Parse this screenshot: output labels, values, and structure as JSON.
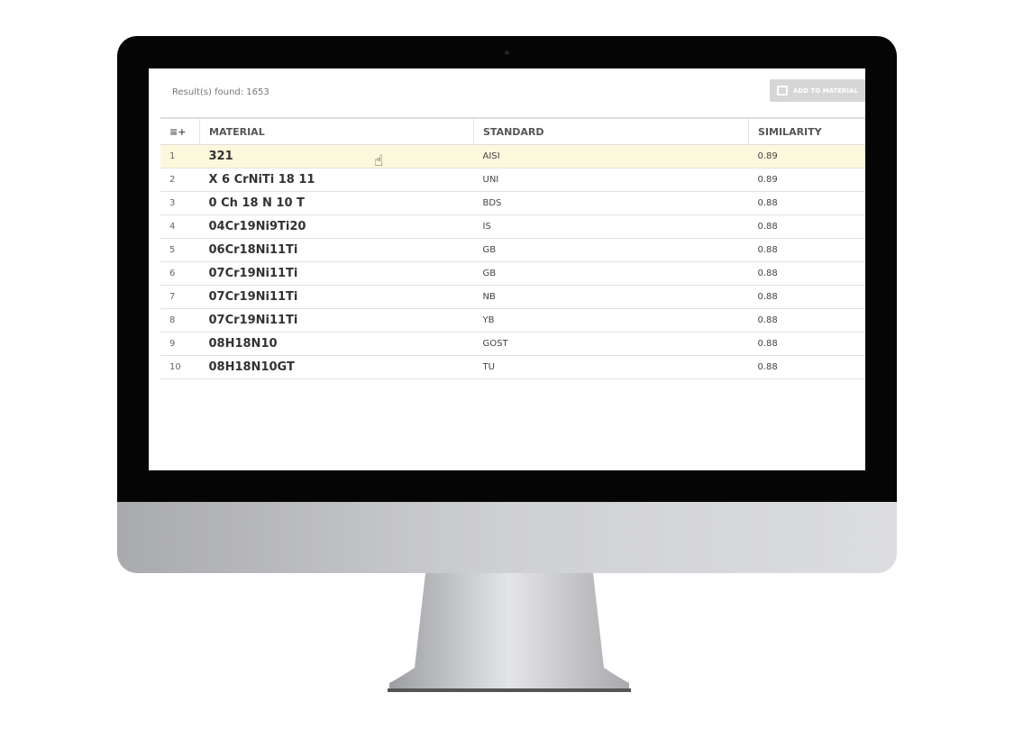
{
  "results_label": "Result(s) found: 1653",
  "add_button": {
    "label": "ADD TO MATERIAL",
    "icon": "add-to-list-icon"
  },
  "table": {
    "columns": [
      "MATERIAL",
      "STANDARD",
      "SIMILARITY"
    ],
    "column_menu_icon": "add-column-icon",
    "selected_row": 1,
    "rows": [
      {
        "n": "1",
        "material": "321",
        "standard": "AISI",
        "similarity": "0.89"
      },
      {
        "n": "2",
        "material": "X 6 CrNiTi 18 11",
        "standard": "UNI",
        "similarity": "0.89"
      },
      {
        "n": "3",
        "material": "0 Ch 18 N 10 T",
        "standard": "BDS",
        "similarity": "0.88"
      },
      {
        "n": "4",
        "material": "04Cr19Ni9Ti20",
        "standard": "IS",
        "similarity": "0.88"
      },
      {
        "n": "5",
        "material": "06Cr18Ni11Ti",
        "standard": "GB",
        "similarity": "0.88"
      },
      {
        "n": "6",
        "material": "07Cr19Ni11Ti",
        "standard": "GB",
        "similarity": "0.88"
      },
      {
        "n": "7",
        "material": "07Cr19Ni11Ti",
        "standard": "NB",
        "similarity": "0.88"
      },
      {
        "n": "8",
        "material": "07Cr19Ni11Ti",
        "standard": "YB",
        "similarity": "0.88"
      },
      {
        "n": "9",
        "material": "08H18N10",
        "standard": "GOST",
        "similarity": "0.88"
      },
      {
        "n": "10",
        "material": "08H18N10GT",
        "standard": "TU",
        "similarity": "0.88"
      }
    ]
  },
  "colors": {
    "selected_row": "#fcf8dc",
    "button": "#d6d6d6"
  }
}
